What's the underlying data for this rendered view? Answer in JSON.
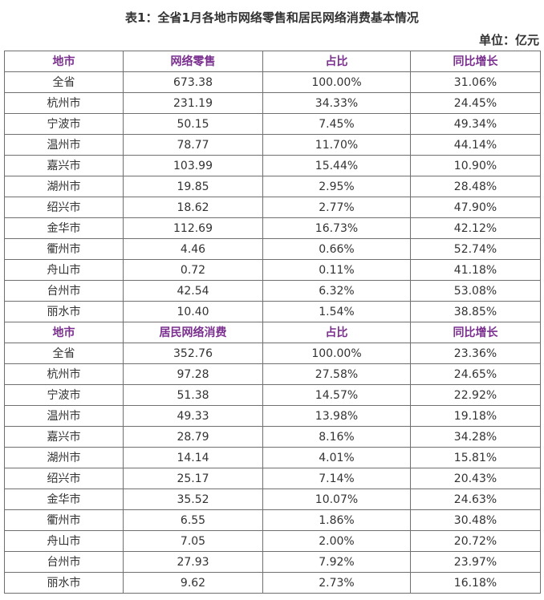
{
  "title": "表1：全省1月各地市网络零售和居民网络消费基本情况",
  "unit": "单位：亿元",
  "sections": [
    {
      "headers": [
        "地市",
        "网络零售",
        "占比",
        "同比增长"
      ],
      "rows": [
        [
          "全省",
          "673.38",
          "100.00%",
          "31.06%"
        ],
        [
          "杭州市",
          "231.19",
          "34.33%",
          "24.45%"
        ],
        [
          "宁波市",
          "50.15",
          "7.45%",
          "49.34%"
        ],
        [
          "温州市",
          "78.77",
          "11.70%",
          "44.14%"
        ],
        [
          "嘉兴市",
          "103.99",
          "15.44%",
          "10.90%"
        ],
        [
          "湖州市",
          "19.85",
          "2.95%",
          "28.48%"
        ],
        [
          "绍兴市",
          "18.62",
          "2.77%",
          "47.90%"
        ],
        [
          "金华市",
          "112.69",
          "16.73%",
          "42.12%"
        ],
        [
          "衢州市",
          "4.46",
          "0.66%",
          "52.74%"
        ],
        [
          "舟山市",
          "0.72",
          "0.11%",
          "41.18%"
        ],
        [
          "台州市",
          "42.54",
          "6.32%",
          "53.08%"
        ],
        [
          "丽水市",
          "10.40",
          "1.54%",
          "38.85%"
        ]
      ]
    },
    {
      "headers": [
        "地市",
        "居民网络消费",
        "占比",
        "同比增长"
      ],
      "rows": [
        [
          "全省",
          "352.76",
          "100.00%",
          "23.36%"
        ],
        [
          "杭州市",
          "97.28",
          "27.58%",
          "24.65%"
        ],
        [
          "宁波市",
          "51.38",
          "14.57%",
          "22.92%"
        ],
        [
          "温州市",
          "49.33",
          "13.98%",
          "19.18%"
        ],
        [
          "嘉兴市",
          "28.79",
          "8.16%",
          "34.28%"
        ],
        [
          "湖州市",
          "14.14",
          "4.01%",
          "15.81%"
        ],
        [
          "绍兴市",
          "25.17",
          "7.14%",
          "20.43%"
        ],
        [
          "金华市",
          "35.52",
          "10.07%",
          "24.63%"
        ],
        [
          "衢州市",
          "6.55",
          "1.86%",
          "30.48%"
        ],
        [
          "舟山市",
          "7.05",
          "2.00%",
          "20.72%"
        ],
        [
          "台州市",
          "27.93",
          "7.92%",
          "23.97%"
        ],
        [
          "丽水市",
          "9.62",
          "2.73%",
          "16.18%"
        ]
      ]
    }
  ]
}
